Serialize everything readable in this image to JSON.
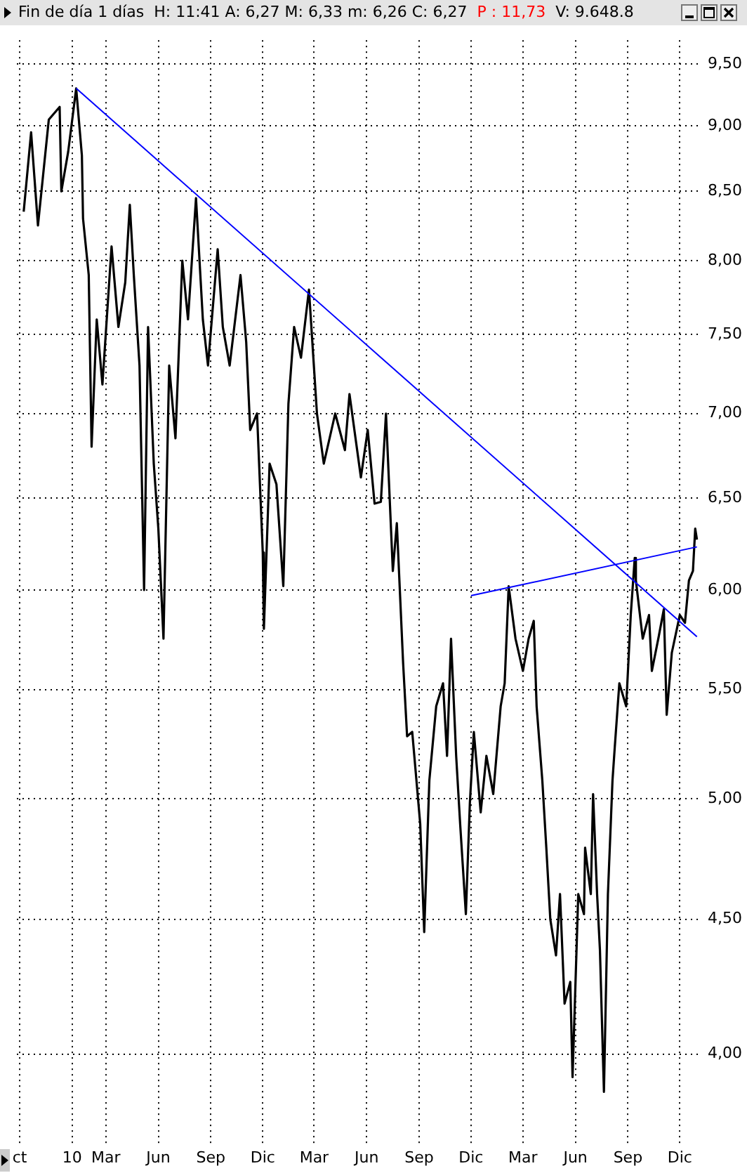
{
  "chart_data": {
    "type": "line",
    "title": "Fin de día 1 días",
    "subtitle": "H: 11:41  A: 6,27  M: 6,33  m: 6,26  C: 6,27",
    "annotations": [
      "P : 11,73",
      "V: 9.648.8"
    ],
    "x": [
      "2009-10-08",
      "2009-10-21",
      "2009-11-02",
      "2009-11-21",
      "2009-12-10",
      "2009-12-13",
      "2009-12-25",
      "2010-01-08",
      "2010-01-18",
      "2010-01-20",
      "2010-01-30",
      "2010-02-04",
      "2010-02-13",
      "2010-02-23",
      "2010-03-11",
      "2010-03-23",
      "2010-04-04",
      "2010-04-12",
      "2010-04-19",
      "2010-04-29",
      "2010-05-07",
      "2010-05-14",
      "2010-05-24",
      "2010-06-01",
      "2010-06-10",
      "2010-06-20",
      "2010-07-01",
      "2010-07-13",
      "2010-07-23",
      "2010-08-06",
      "2010-08-18",
      "2010-08-27",
      "2010-09-13",
      "2010-09-22",
      "2010-10-04",
      "2010-10-23",
      "2010-11-02",
      "2010-11-09",
      "2010-11-21",
      "2010-12-01",
      "2010-12-03",
      "2010-12-13",
      "2010-12-25",
      "2011-01-06",
      "2011-01-15",
      "2011-01-25",
      "2011-02-06",
      "2011-02-20",
      "2011-03-06",
      "2011-03-18",
      "2011-04-07",
      "2011-04-24",
      "2011-05-02",
      "2011-05-22",
      "2011-06-03",
      "2011-06-15",
      "2011-06-26",
      "2011-07-05",
      "2011-07-17",
      "2011-07-24",
      "2011-08-04",
      "2011-08-11",
      "2011-08-20",
      "2011-09-03",
      "2011-09-10",
      "2011-09-19",
      "2011-10-01",
      "2011-10-13",
      "2011-10-20",
      "2011-10-27",
      "2011-11-05",
      "2011-11-12",
      "2011-11-22",
      "2011-11-29",
      "2011-12-06",
      "2011-12-18",
      "2011-12-28",
      "2012-01-09",
      "2012-01-22",
      "2012-01-29",
      "2012-02-05",
      "2012-02-17",
      "2012-03-01",
      "2012-03-11",
      "2012-03-20",
      "2012-03-25",
      "2012-04-04",
      "2012-04-11",
      "2012-04-18",
      "2012-04-28",
      "2012-05-05",
      "2012-05-13",
      "2012-05-23",
      "2012-05-27",
      "2012-06-06",
      "2012-06-16",
      "2012-06-18",
      "2012-06-28",
      "2012-07-02",
      "2012-07-09",
      "2012-07-14",
      "2012-07-21",
      "2012-07-28",
      "2012-08-05",
      "2012-08-09",
      "2012-08-17",
      "2012-08-29",
      "2012-09-06",
      "2012-09-13",
      "2012-09-15",
      "2012-09-27",
      "2012-10-08",
      "2012-10-13",
      "2012-10-25",
      "2012-11-03",
      "2012-11-08",
      "2012-11-17",
      "2012-12-01",
      "2012-12-10",
      "2012-12-17",
      "2012-12-24",
      "2012-12-28",
      "2012-12-31"
    ],
    "series": [
      {
        "color": "#000000",
        "values": [
          8.35,
          8.95,
          8.25,
          9.05,
          9.15,
          8.5,
          8.8,
          9.3,
          8.77,
          8.3,
          7.9,
          6.8,
          7.6,
          7.18,
          8.1,
          7.55,
          7.85,
          8.4,
          7.9,
          7.3,
          6.0,
          7.55,
          6.7,
          6.33,
          5.75,
          7.3,
          6.85,
          8.0,
          7.6,
          8.45,
          7.6,
          7.3,
          8.08,
          7.55,
          7.3,
          7.9,
          7.45,
          6.9,
          7.0,
          6.2,
          5.8,
          6.7,
          6.58,
          6.02,
          7.06,
          7.55,
          7.35,
          7.8,
          7.0,
          6.7,
          7.0,
          6.78,
          7.12,
          6.62,
          6.9,
          6.47,
          6.48,
          7.0,
          6.1,
          6.36,
          5.63,
          5.28,
          5.3,
          4.89,
          4.45,
          5.08,
          5.42,
          5.53,
          5.19,
          5.75,
          5.19,
          4.89,
          4.52,
          4.98,
          5.3,
          4.94,
          5.19,
          5.02,
          5.42,
          5.53,
          6.02,
          5.75,
          5.59,
          5.75,
          5.84,
          5.42,
          5.08,
          4.79,
          4.5,
          4.36,
          4.6,
          4.18,
          4.26,
          3.92,
          4.6,
          4.52,
          4.79,
          4.6,
          5.02,
          4.6,
          4.38,
          3.87,
          4.6,
          5.08,
          5.23,
          5.53,
          5.42,
          5.87,
          6.17,
          6.05,
          5.75,
          5.87,
          5.59,
          5.76,
          5.9,
          5.38,
          5.68,
          5.87,
          5.83,
          6.05,
          6.1,
          6.33,
          6.27
        ]
      },
      {
        "type": "line",
        "color": "#0000ff",
        "x": [
          "2010-01-08",
          "2012-12-31"
        ],
        "values": [
          9.3,
          5.76
        ]
      },
      {
        "type": "line",
        "color": "#0000ff",
        "x": [
          "2011-12-01",
          "2012-12-31"
        ],
        "values": [
          5.97,
          6.23
        ]
      }
    ],
    "log": "y",
    "ylim": [
      3.7,
      9.7
    ],
    "yticks": [
      {
        "value": 4,
        "label": "4,00"
      },
      {
        "value": 4.5,
        "label": "4,50"
      },
      {
        "value": 5,
        "label": "5,00"
      },
      {
        "value": 5.5,
        "label": "5,50"
      },
      {
        "value": 6,
        "label": "6,00"
      },
      {
        "value": 6.5,
        "label": "6,50"
      },
      {
        "value": 7,
        "label": "7,00"
      },
      {
        "value": 7.5,
        "label": "7,50"
      },
      {
        "value": 8,
        "label": "8,00"
      },
      {
        "value": 8.5,
        "label": "8,50"
      },
      {
        "value": 9,
        "label": "9,00"
      },
      {
        "value": 9.5,
        "label": "9,50"
      }
    ],
    "xlim": [
      "2009-09-26",
      "2013-01-09"
    ],
    "xticks": [
      {
        "value": "2009-10-01",
        "label": "ct"
      },
      {
        "value": "2010-01-01",
        "label": "10"
      },
      {
        "value": "2010-03-01",
        "label": "Mar"
      },
      {
        "value": "2010-06-01",
        "label": "Jun"
      },
      {
        "value": "2010-09-01",
        "label": "Sep"
      },
      {
        "value": "2010-12-01",
        "label": "Dic"
      },
      {
        "value": "2011-03-01",
        "label": "Mar"
      },
      {
        "value": "2011-06-01",
        "label": "Jun"
      },
      {
        "value": "2011-09-01",
        "label": "Sep"
      },
      {
        "value": "2011-12-01",
        "label": "Dic"
      },
      {
        "value": "2012-03-01",
        "label": "Mar"
      },
      {
        "value": "2012-06-01",
        "label": "Jun"
      },
      {
        "value": "2012-09-01",
        "label": "Sep"
      },
      {
        "value": "2012-12-01",
        "label": "Dic"
      }
    ],
    "grid": true,
    "marker": "none",
    "line_style": "solid"
  }
}
